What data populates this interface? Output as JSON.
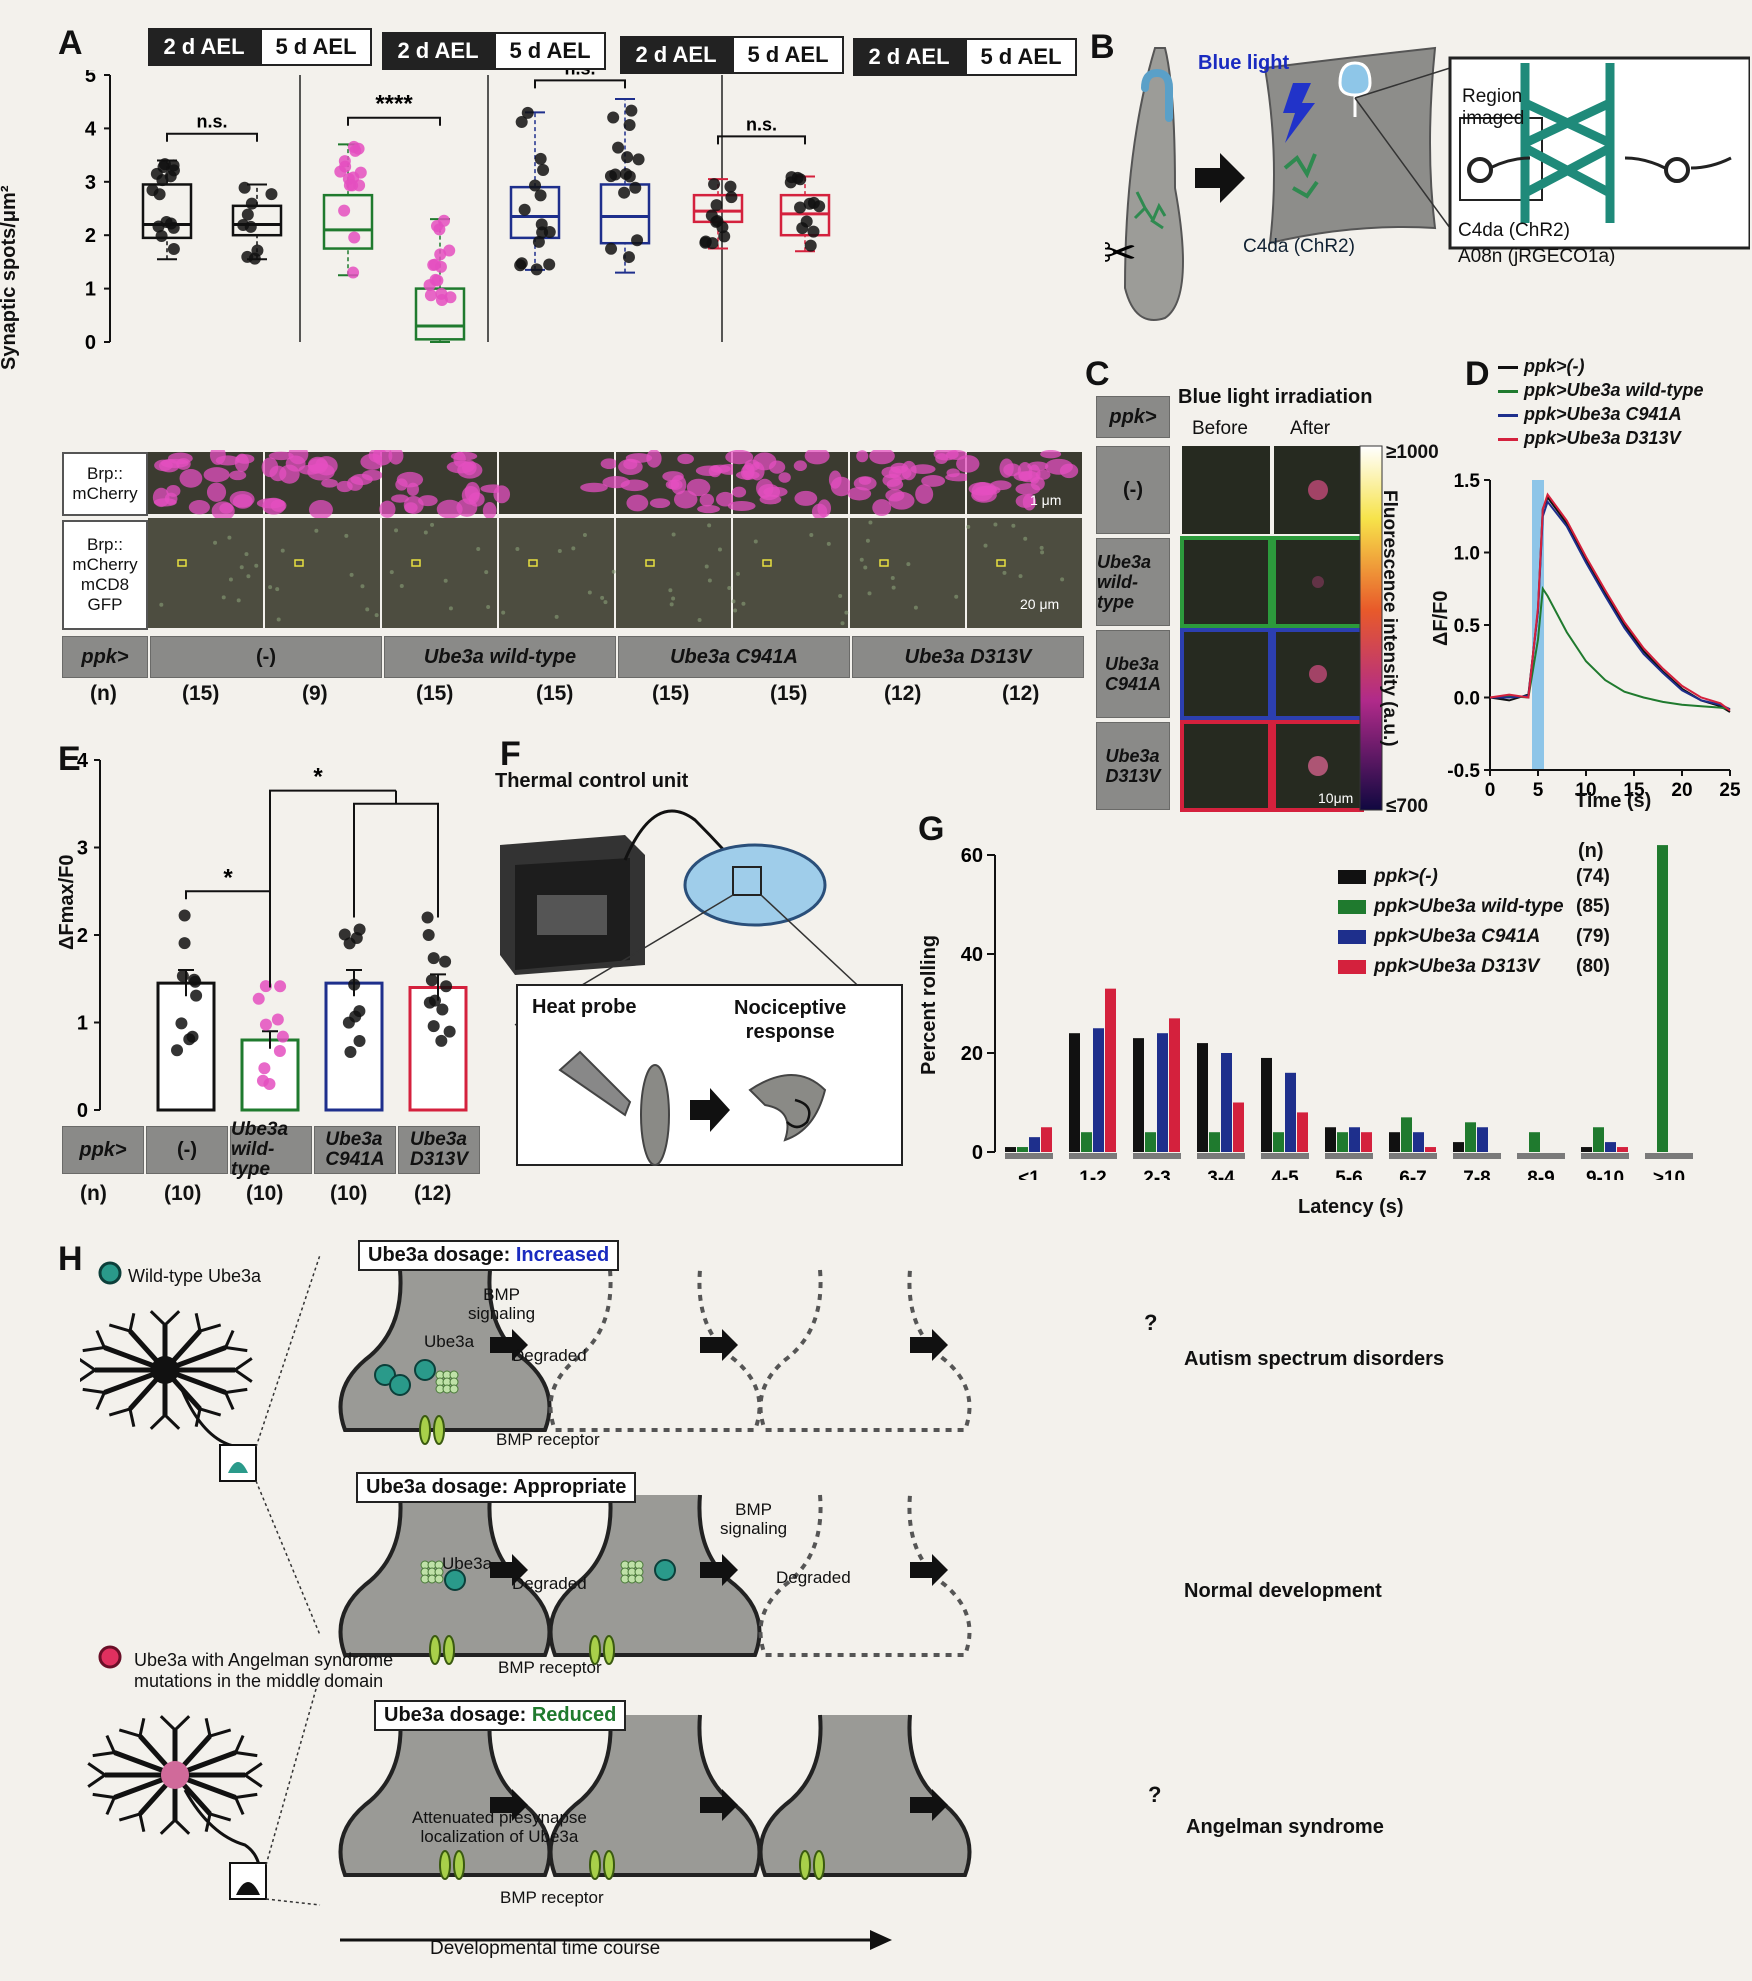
{
  "panels": {
    "A": "A",
    "B": "B",
    "C": "C",
    "D": "D",
    "E": "E",
    "F": "F",
    "G": "G",
    "H": "H"
  },
  "a": {
    "stage_tags": [
      "2 d AEL",
      "5 d AEL",
      "2 d AEL",
      "5 d AEL",
      "2 d AEL",
      "5 d AEL",
      "2 d AEL",
      "5 d AEL"
    ],
    "ylabel": "Synaptic spots/μm²",
    "yticks": [
      "0",
      "1",
      "2",
      "3",
      "4",
      "5"
    ],
    "sig": [
      "n.s.",
      "****",
      "n.s.",
      "n.s."
    ],
    "img_labels": {
      "brp": "Brp::\nmCherry",
      "merge": "Brp::\nmCherry\nmCD8\nGFP"
    },
    "scale_1": "1 μm",
    "scale_20": "20 μm",
    "geno_row_label": "ppk>",
    "genotypes": [
      "(-)",
      "Ube3a wild-type",
      "Ube3a C941A",
      "Ube3a D313V"
    ],
    "n_label": "(n)",
    "n_values": [
      "(15)",
      "(9)",
      "(15)",
      "(15)",
      "(15)",
      "(15)",
      "(12)",
      "(12)"
    ]
  },
  "b": {
    "blue_light": "Blue light",
    "region_imaged": "Region\nimaged",
    "c4da": "C4da (ChR2)",
    "legend_1": "C4da (ChR2)",
    "legend_2": "A08n (jRGECO1a)"
  },
  "c": {
    "title": "Blue light irradiation",
    "before": "Before",
    "after": "After",
    "ppk": "ppk>",
    "rows": [
      "(-)",
      "Ube3a\nwild-type",
      "Ube3a\nC941A",
      "Ube3a\nD313V"
    ],
    "cbar_max": "≥1000",
    "cbar_min": "≤700",
    "cbar_label": "Fluorescence intensity (a.u.)",
    "scale": "10μm"
  },
  "d": {
    "legend": [
      "ppk>(-)",
      "ppk>Ube3a wild-type",
      "ppk>Ube3a C941A",
      "ppk>Ube3a D313V"
    ],
    "ylabel": "ΔF/F0",
    "xlabel": "Time (s)",
    "yticks": [
      "-0.5",
      "0.0",
      "0.5",
      "1.0",
      "1.5"
    ],
    "xticks": [
      "0",
      "5",
      "10",
      "15",
      "20",
      "25"
    ]
  },
  "e": {
    "ylabel": "ΔFmax/F0",
    "yticks": [
      "0",
      "1",
      "2",
      "3",
      "4"
    ],
    "sig": [
      "*",
      "*"
    ],
    "ppk": "ppk>",
    "genotypes": [
      "(-)",
      "Ube3a\nwild-type",
      "Ube3a\nC941A",
      "Ube3a\nD313V"
    ],
    "n_label": "(n)",
    "n_values": [
      "(10)",
      "(10)",
      "(10)",
      "(12)"
    ]
  },
  "f": {
    "thermal": "Thermal control unit",
    "heat_probe": "Heat probe",
    "response": "Nociceptive\nresponse"
  },
  "g": {
    "ylabel": "Percent rolling",
    "xlabel": "Latency (s)",
    "yticks": [
      "0",
      "20",
      "40",
      "60"
    ],
    "n_header": "(n)",
    "legend": [
      "ppk>(-)",
      "ppk>Ube3a wild-type",
      "ppk>Ube3a C941A",
      "ppk>Ube3a D313V"
    ],
    "legend_n": [
      "(74)",
      "(85)",
      "(79)",
      "(80)"
    ]
  },
  "h": {
    "wild_type": "Wild-type Ube3a",
    "angelman": "Ube3a with Angelman syndrome\nmutations in the middle domain",
    "increased_prefix": "Ube3a dosage: ",
    "increased": "Increased",
    "appropriate": "Appropriate",
    "reduced": "Reduced",
    "bmp_signaling": "BMP\nsignaling",
    "ube3a": "Ube3a",
    "degraded": "Degraded",
    "bmp_receptor": "BMP receptor",
    "attenuated": "Attenuated presynapse\nlocalization of Ube3a",
    "autism": "Autism spectrum disorders",
    "normal": "Normal development",
    "angelman_out": "Angelman syndrome",
    "q": "?",
    "time_course": "Developmental time course"
  },
  "colors": {
    "neg": "#111111",
    "wt": "#1f7a2e",
    "c941a": "#1e2f8c",
    "d313v": "#d4213d",
    "magenta": "#e44fc0",
    "blue_stim": "#4aa8e6"
  },
  "chart_data": [
    {
      "type": "scatter",
      "title": "",
      "ylabel": "Synaptic spots/μm²",
      "ylim": [
        0,
        5
      ],
      "categories": [
        "(-) 2 d AEL",
        "(-) 5 d AEL",
        "Ube3a wild-type 2 d AEL",
        "Ube3a wild-type 5 d AEL",
        "Ube3a C941A 2 d AEL",
        "Ube3a C941A 5 d AEL",
        "Ube3a D313V 2 d AEL",
        "Ube3a D313V 5 d AEL"
      ],
      "box_median": [
        2.2,
        2.2,
        2.1,
        0.3,
        2.35,
        2.35,
        2.45,
        2.4
      ],
      "box_q1": [
        1.95,
        2.0,
        1.75,
        0.05,
        1.95,
        1.85,
        2.25,
        2.0
      ],
      "box_q3": [
        2.95,
        2.55,
        2.75,
        1.0,
        2.9,
        2.95,
        2.75,
        2.75
      ],
      "whisker_low": [
        1.55,
        1.55,
        1.25,
        0.0,
        1.35,
        1.3,
        1.75,
        1.7
      ],
      "whisker_high": [
        3.4,
        2.95,
        3.7,
        2.3,
        4.3,
        4.55,
        3.05,
        3.1
      ]
    },
    {
      "type": "line",
      "title": "",
      "xlabel": "Time (s)",
      "ylabel": "ΔF/F0",
      "xlim": [
        0,
        25
      ],
      "ylim": [
        -0.5,
        1.5
      ],
      "series": [
        {
          "name": "ppk>(-)",
          "x": [
            0,
            2,
            4,
            5,
            5.5,
            6,
            8,
            10,
            12,
            14,
            16,
            18,
            20,
            22,
            24,
            25
          ],
          "y": [
            0,
            -0.02,
            0.02,
            0.6,
            1.3,
            1.38,
            1.2,
            0.95,
            0.72,
            0.5,
            0.32,
            0.18,
            0.06,
            -0.02,
            -0.06,
            -0.1
          ]
        },
        {
          "name": "ppk>Ube3a wild-type",
          "x": [
            0,
            2,
            4,
            5,
            5.5,
            6,
            8,
            10,
            12,
            14,
            16,
            18,
            20,
            22,
            24,
            25
          ],
          "y": [
            0,
            0.01,
            0,
            0.4,
            0.75,
            0.7,
            0.45,
            0.25,
            0.12,
            0.04,
            0,
            -0.03,
            -0.05,
            -0.06,
            -0.07,
            -0.08
          ]
        },
        {
          "name": "ppk>Ube3a C941A",
          "x": [
            0,
            2,
            4,
            5,
            5.5,
            6,
            8,
            10,
            12,
            14,
            16,
            18,
            20,
            22,
            24,
            25
          ],
          "y": [
            0,
            0,
            0.01,
            0.6,
            1.25,
            1.35,
            1.18,
            0.93,
            0.7,
            0.48,
            0.3,
            0.17,
            0.05,
            -0.02,
            -0.05,
            -0.08
          ]
        },
        {
          "name": "ppk>Ube3a D313V",
          "x": [
            0,
            2,
            4,
            5,
            5.5,
            6,
            8,
            10,
            12,
            14,
            16,
            18,
            20,
            22,
            24,
            25
          ],
          "y": [
            0,
            0.02,
            0,
            0.62,
            1.3,
            1.4,
            1.22,
            0.97,
            0.74,
            0.52,
            0.34,
            0.2,
            0.08,
            0,
            -0.04,
            -0.09
          ]
        }
      ]
    },
    {
      "type": "bar",
      "title": "",
      "ylabel": "ΔFmax/F0",
      "ylim": [
        0,
        4
      ],
      "categories": [
        "(-)",
        "Ube3a wild-type",
        "Ube3a C941A",
        "Ube3a D313V"
      ],
      "values": [
        1.45,
        0.8,
        1.45,
        1.4
      ],
      "sem": [
        0.15,
        0.1,
        0.15,
        0.15
      ]
    },
    {
      "type": "bar",
      "title": "",
      "xlabel": "Latency (s)",
      "ylabel": "Percent rolling",
      "ylim": [
        0,
        60
      ],
      "categories": [
        "<1",
        "1-2",
        "2-3",
        "3-4",
        "4-5",
        "5-6",
        "6-7",
        "7-8",
        "8-9",
        "9-10",
        ">10"
      ],
      "series": [
        {
          "name": "ppk>(-)",
          "values": [
            1,
            24,
            23,
            22,
            19,
            5,
            4,
            2,
            0,
            1,
            0
          ]
        },
        {
          "name": "ppk>Ube3a wild-type",
          "values": [
            1,
            4,
            4,
            4,
            4,
            4,
            7,
            6,
            4,
            5,
            62
          ]
        },
        {
          "name": "ppk>Ube3a C941A",
          "values": [
            3,
            25,
            24,
            20,
            16,
            5,
            4,
            5,
            0,
            2,
            0
          ]
        },
        {
          "name": "ppk>Ube3a D313V",
          "values": [
            5,
            33,
            27,
            10,
            8,
            4,
            1,
            0,
            0,
            1,
            0
          ]
        }
      ]
    }
  ]
}
